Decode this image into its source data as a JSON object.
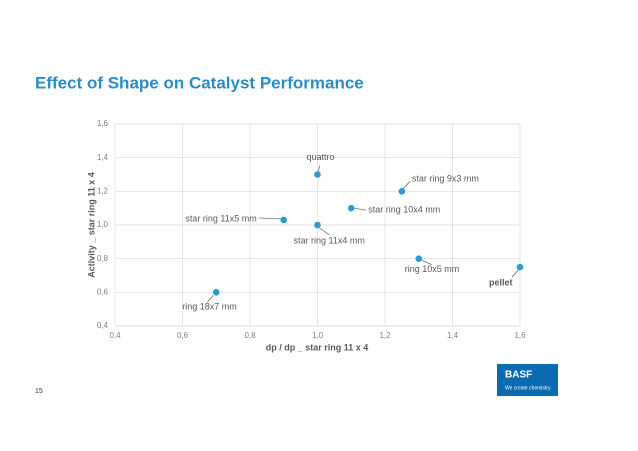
{
  "chart_data": {
    "type": "scatter",
    "title": "Effect of Shape on Catalyst Performance",
    "x_label": "dp / dp _ star ring 11 x 4",
    "y_label": "Activity _ star ring 11 x 4",
    "x": [
      0.7,
      0.9,
      1.0,
      1.0,
      1.1,
      1.25,
      1.3,
      1.6
    ],
    "values": [
      0.6,
      1.03,
      1.3,
      1.0,
      1.1,
      1.2,
      0.8,
      0.75
    ],
    "point_labels": [
      "ring 18x7 mm",
      "star ring 11x5 mm",
      "quattro",
      "star ring 11x4 mm",
      "star ring 10x4 mm",
      "star ring 9x3 mm",
      "ring 10x5 mm",
      "pellet"
    ],
    "color": "#2e9bd0",
    "xlim": [
      0.4,
      1.6
    ],
    "xticks": [
      {
        "value": 0.4,
        "label": "0,4"
      },
      {
        "value": 0.6,
        "label": "0,6"
      },
      {
        "value": 0.8,
        "label": "0,8"
      },
      {
        "value": 1.0,
        "label": "1,0"
      },
      {
        "value": 1.2,
        "label": "1,2"
      },
      {
        "value": 1.4,
        "label": "1,4"
      },
      {
        "value": 1.6,
        "label": "1,6"
      }
    ],
    "ylim": [
      0.4,
      1.6
    ],
    "yticks": [
      {
        "value": 0.4,
        "label": "0,4"
      },
      {
        "value": 0.6,
        "label": "0,6"
      },
      {
        "value": 0.8,
        "label": "0,8"
      },
      {
        "value": 1.0,
        "label": "1,0"
      },
      {
        "value": 1.2,
        "label": "1,2"
      },
      {
        "value": 1.4,
        "label": "1,4"
      },
      {
        "value": 1.6,
        "label": "1,6"
      }
    ],
    "grid": true
  },
  "footer": {
    "page_number": "15",
    "logo": "BASF",
    "tagline": "We create chemistry"
  }
}
